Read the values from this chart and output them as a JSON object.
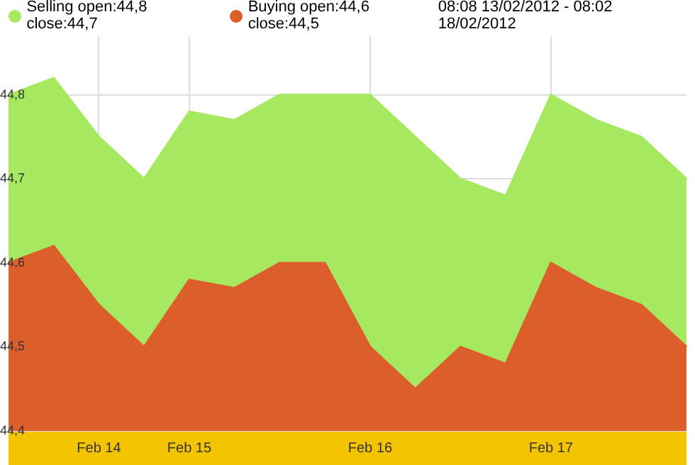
{
  "chart_data": {
    "type": "area",
    "subtitle": "08:08 13/02/2012 - 08:02 18/02/2012",
    "categories": [
      null,
      null,
      "Feb 14",
      null,
      "Feb 15",
      null,
      null,
      null,
      "Feb 16",
      null,
      null,
      null,
      "Feb 17",
      null,
      null,
      null
    ],
    "series": [
      {
        "name": "Selling open:44,8 close:44,7",
        "color": "#a6e85f",
        "values": [
          44.8,
          44.82,
          44.75,
          44.7,
          44.78,
          44.77,
          44.8,
          44.8,
          44.8,
          44.75,
          44.7,
          44.68,
          44.8,
          44.77,
          44.75,
          44.7
        ]
      },
      {
        "name": "Buying open:44,6 close:44,5",
        "color": "#dc5e2a",
        "values": [
          44.6,
          44.62,
          44.55,
          44.5,
          44.58,
          44.57,
          44.6,
          44.6,
          44.5,
          44.45,
          44.5,
          44.48,
          44.6,
          44.57,
          44.55,
          44.5
        ]
      }
    ],
    "ylim": [
      44.4,
      44.87
    ],
    "yticks": [
      {
        "value": 44.4,
        "label": "44,4"
      },
      {
        "value": 44.5,
        "label": "44,5"
      },
      {
        "value": 44.6,
        "label": "44,6"
      },
      {
        "value": 44.7,
        "label": "44,7"
      },
      {
        "value": 44.8,
        "label": "44,8"
      }
    ],
    "grid": true,
    "legend": "top left"
  }
}
